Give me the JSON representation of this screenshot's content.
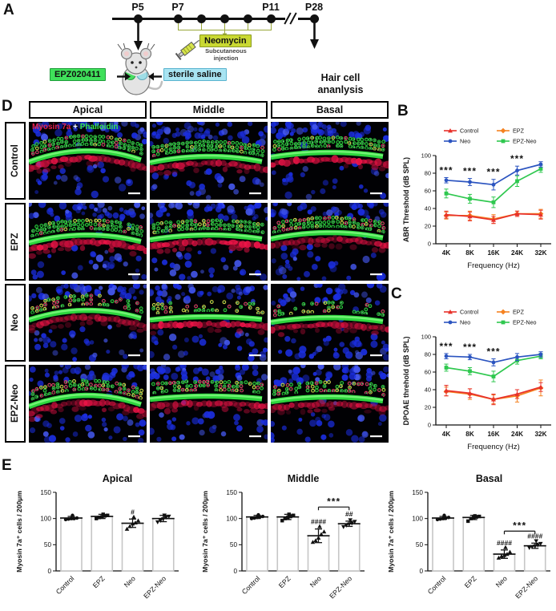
{
  "panels": {
    "a": "A",
    "b": "B",
    "c": "C",
    "d": "D",
    "e": "E"
  },
  "colors": {
    "control": "#e8312a",
    "epz": "#f58220",
    "neo": "#2b54c0",
    "epz-neo": "#2fc84f",
    "neomycin": "#c9d832",
    "epz-box": "#3fe05a",
    "saline-box": "#a8e4f2",
    "bracket": "#9aa83a",
    "stain-red": "#e5234d",
    "stain-green": "#37e84a",
    "nuclei-blue": "#1b2ee0"
  },
  "icons": {
    "syringe": "syringe-icon",
    "mouse": "mouse-illustration",
    "down-arrow": "down-arrow-icon",
    "side-arrow": "side-arrow-icon"
  },
  "timeline": {
    "points": [
      {
        "label": "P5",
        "x": 172
      },
      {
        "label": "P7",
        "x": 222
      },
      {
        "x": 251
      },
      {
        "x": 280
      },
      {
        "x": 309
      },
      {
        "label": "P11",
        "x": 338
      },
      {
        "label": "P28",
        "x": 392
      }
    ],
    "neomycin_label": "Neomycin",
    "neomycin_sub": "Subcutaneous injection",
    "epz_label": "EPZ020411",
    "saline_label": "sterile saline",
    "endpoint_label": "Hair cell ananlysis"
  },
  "microscopy": {
    "col_headers": [
      "Apical",
      "Middle",
      "Basal"
    ],
    "row_labels": [
      "Control",
      "EPZ",
      "Neo",
      "EPZ-Neo"
    ],
    "stain_legend": {
      "red": "Myosin 7a",
      "plus": "+",
      "green": "Phalloidin"
    },
    "cells": [
      {
        "seed": 11,
        "arch": 7,
        "gy": 38,
        "red": 0.9,
        "loss": 0.03,
        "mix": 0.15
      },
      {
        "seed": 12,
        "arch": 4,
        "gy": 42,
        "red": 0.8,
        "loss": 0.03,
        "mix": 0.15
      },
      {
        "seed": 13,
        "arch": 3,
        "gy": 36,
        "red": 1.0,
        "loss": 0.03,
        "mix": 0.2
      },
      {
        "seed": 21,
        "arch": 5,
        "gy": 40,
        "red": 1.0,
        "loss": 0.05,
        "mix": 0.3
      },
      {
        "seed": 22,
        "arch": 3,
        "gy": 38,
        "red": 1.0,
        "loss": 0.05,
        "mix": 0.3
      },
      {
        "seed": 23,
        "arch": 4,
        "gy": 36,
        "red": 0.75,
        "loss": 0.05,
        "mix": 0.4
      },
      {
        "seed": 31,
        "arch": 6,
        "gy": 34,
        "red": 0.7,
        "loss": 0.4,
        "mix": 0.7
      },
      {
        "seed": 32,
        "arch": 2,
        "gy": 38,
        "red": 1.0,
        "loss": 0.5,
        "mix": 0.5
      },
      {
        "seed": 33,
        "arch": 3,
        "gy": 40,
        "red": 0.8,
        "loss": 0.6,
        "mix": 0.45
      },
      {
        "seed": 41,
        "arch": 7,
        "gy": 40,
        "red": 0.9,
        "loss": 0.15,
        "mix": 0.55
      },
      {
        "seed": 42,
        "arch": 2,
        "gy": 36,
        "red": 0.85,
        "loss": 0.2,
        "mix": 0.5
      },
      {
        "seed": 43,
        "arch": 3,
        "gy": 38,
        "red": 0.8,
        "loss": 0.3,
        "mix": 0.45
      }
    ]
  },
  "chart_data": [
    {
      "type": "line",
      "id": "abr",
      "title": "",
      "ylabel": "ABR Threshold (dB SPL)",
      "xlabel": "Frequency (Hz)",
      "categories": [
        "4K",
        "8K",
        "16K",
        "24K",
        "32K"
      ],
      "ylim": [
        0,
        100
      ],
      "yticks": [
        0,
        20,
        40,
        60,
        80,
        100
      ],
      "legend_position": "top",
      "series": [
        {
          "name": "Control",
          "color": "#e8312a",
          "marker": "triangle",
          "values": [
            33,
            31,
            27,
            34,
            33
          ],
          "err": [
            4,
            5,
            4,
            3,
            5
          ]
        },
        {
          "name": "EPZ",
          "color": "#f58220",
          "marker": "diamond",
          "values": [
            32,
            32,
            28,
            34,
            34
          ],
          "err": [
            4,
            5,
            5,
            3,
            5
          ]
        },
        {
          "name": "Neo",
          "color": "#2b54c0",
          "marker": "circle",
          "values": [
            72,
            70,
            67,
            83,
            90
          ],
          "err": [
            3,
            4,
            6,
            5,
            3
          ]
        },
        {
          "name": "EPZ-Neo",
          "color": "#2fc84f",
          "marker": "square",
          "values": [
            57,
            51,
            47,
            71,
            85
          ],
          "err": [
            5,
            5,
            6,
            6,
            4
          ]
        }
      ],
      "sig": [
        {
          "i": 0,
          "label": "***"
        },
        {
          "i": 1,
          "label": "***"
        },
        {
          "i": 2,
          "label": "***"
        },
        {
          "i": 3,
          "label": "***"
        }
      ]
    },
    {
      "type": "line",
      "id": "dpoae",
      "title": "",
      "ylabel": "DPOAE threhold (dB SPL)",
      "xlabel": "Frequency (Hz)",
      "categories": [
        "4K",
        "8K",
        "16K",
        "24K",
        "32K"
      ],
      "ylim": [
        0,
        100
      ],
      "yticks": [
        0,
        20,
        40,
        60,
        80,
        100
      ],
      "legend_position": "top",
      "series": [
        {
          "name": "Control",
          "color": "#e8312a",
          "marker": "triangle",
          "values": [
            39,
            36,
            29,
            35,
            43
          ],
          "err": [
            6,
            5,
            6,
            5,
            5
          ]
        },
        {
          "name": "EPZ",
          "color": "#f58220",
          "marker": "diamond",
          "values": [
            38,
            35,
            29,
            33,
            42
          ],
          "err": [
            5,
            6,
            5,
            7,
            9
          ]
        },
        {
          "name": "Neo",
          "color": "#2b54c0",
          "marker": "circle",
          "values": [
            78,
            77,
            71,
            77,
            80
          ],
          "err": [
            3,
            3,
            4,
            4,
            3
          ]
        },
        {
          "name": "EPZ-Neo",
          "color": "#2fc84f",
          "marker": "square",
          "values": [
            65,
            61,
            55,
            73,
            78
          ],
          "err": [
            4,
            4,
            6,
            4,
            3
          ]
        }
      ],
      "sig": [
        {
          "i": 0,
          "label": "***"
        },
        {
          "i": 1,
          "label": "***"
        },
        {
          "i": 2,
          "label": "***"
        }
      ]
    },
    {
      "type": "bar",
      "id": "apical",
      "title": "Apical",
      "ylabel": "Myosin 7a⁺ cells / 200µm",
      "xlabel": "",
      "categories": [
        "Control",
        "EPZ",
        "Neo",
        "EPZ-Neo"
      ],
      "ylim": [
        0,
        150
      ],
      "yticks": [
        0,
        50,
        100,
        150
      ],
      "bars": [
        {
          "value": 101,
          "err": 3,
          "annotation": "",
          "marker": "circle",
          "points": [
            98,
            99,
            100,
            100,
            101,
            106
          ]
        },
        {
          "value": 104,
          "err": 4,
          "annotation": "",
          "marker": "square",
          "points": [
            100,
            102,
            103,
            105,
            106,
            108
          ]
        },
        {
          "value": 91,
          "err": 8,
          "annotation": "#",
          "marker": "triangle",
          "points": [
            80,
            85,
            90,
            92,
            96,
            103
          ]
        },
        {
          "value": 100,
          "err": 6,
          "annotation": "",
          "marker": "tri_down",
          "points": [
            93,
            96,
            99,
            102,
            104,
            106
          ]
        }
      ],
      "bracket": null
    },
    {
      "type": "bar",
      "id": "middle",
      "title": "Middle",
      "ylabel": "Myosin 7a⁺ cells / 200µm",
      "xlabel": "",
      "categories": [
        "Control",
        "EPZ",
        "Neo",
        "EPZ-Neo"
      ],
      "ylim": [
        0,
        150
      ],
      "yticks": [
        0,
        50,
        100,
        150
      ],
      "bars": [
        {
          "value": 103,
          "err": 3,
          "annotation": "",
          "marker": "circle",
          "points": [
            100,
            101,
            102,
            103,
            104,
            107
          ]
        },
        {
          "value": 103,
          "err": 5,
          "annotation": "",
          "marker": "square",
          "points": [
            96,
            100,
            102,
            104,
            106,
            108
          ]
        },
        {
          "value": 67,
          "err": 13,
          "annotation": "####",
          "marker": "triangle",
          "points": [
            55,
            58,
            63,
            70,
            75,
            85
          ]
        },
        {
          "value": 90,
          "err": 5,
          "annotation": "##",
          "marker": "tri_down",
          "points": [
            84,
            87,
            89,
            91,
            94,
            97
          ]
        }
      ],
      "bracket": {
        "from": 2,
        "to": 3,
        "label": "***",
        "y": 122
      }
    },
    {
      "type": "bar",
      "id": "basal",
      "title": "Basal",
      "ylabel": "Myosin 7a⁺ cells / 200µm",
      "xlabel": "",
      "categories": [
        "Control",
        "EPZ",
        "Neo",
        "EPZ-Neo"
      ],
      "ylim": [
        0,
        150
      ],
      "yticks": [
        0,
        50,
        100,
        150
      ],
      "bars": [
        {
          "value": 101,
          "err": 3,
          "annotation": "",
          "marker": "circle",
          "points": [
            98,
            99,
            100,
            101,
            102,
            106
          ]
        },
        {
          "value": 102,
          "err": 4,
          "annotation": "",
          "marker": "square",
          "points": [
            95,
            100,
            102,
            103,
            104,
            105
          ]
        },
        {
          "value": 32,
          "err": 8,
          "annotation": "####",
          "marker": "triangle",
          "points": [
            25,
            28,
            30,
            32,
            36,
            45
          ]
        },
        {
          "value": 48,
          "err": 5,
          "annotation": "####",
          "marker": "tri_down",
          "points": [
            44,
            46,
            47,
            49,
            52,
            57
          ]
        }
      ],
      "bracket": {
        "from": 2,
        "to": 3,
        "label": "***",
        "y": 76
      }
    }
  ]
}
